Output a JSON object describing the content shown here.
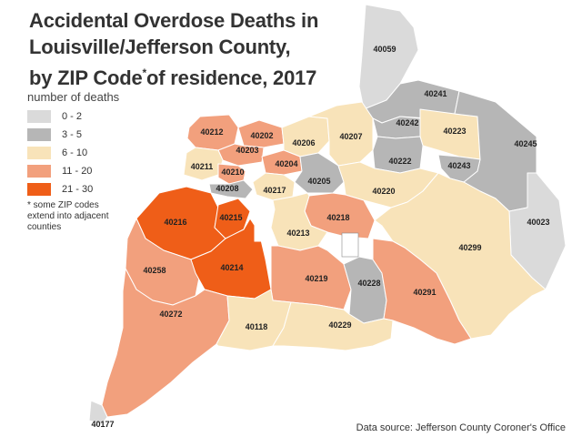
{
  "title": {
    "line1": "Accidental Overdose Deaths in",
    "line2": "Louisville/Jefferson County,",
    "line3a": "by ZIP Code",
    "asterisk": "*",
    "line3b": "of residence, 2017"
  },
  "legend": {
    "title": "number of deaths",
    "items": [
      {
        "label": "0 - 2",
        "color": "#dadada"
      },
      {
        "label": "3 - 5",
        "color": "#b6b6b6"
      },
      {
        "label": "6 - 10",
        "color": "#f8e3b9"
      },
      {
        "label": "11 - 20",
        "color": "#f2a07d"
      },
      {
        "label": "21 - 30",
        "color": "#ef5e18"
      }
    ]
  },
  "footnote": "* some ZIP codes extend into adjacent counties",
  "source": "Data source: Jefferson County Coroner's Office",
  "zip_codes": [
    {
      "zip": "40059",
      "deaths_range": "0 - 2"
    },
    {
      "zip": "40241",
      "deaths_range": "3 - 5"
    },
    {
      "zip": "40242",
      "deaths_range": "3 - 5"
    },
    {
      "zip": "40223",
      "deaths_range": "6 - 10"
    },
    {
      "zip": "40222",
      "deaths_range": "3 - 5"
    },
    {
      "zip": "40245",
      "deaths_range": "3 - 5"
    },
    {
      "zip": "40243",
      "deaths_range": "3 - 5"
    },
    {
      "zip": "40023",
      "deaths_range": "0 - 2"
    },
    {
      "zip": "40212",
      "deaths_range": "11 - 20"
    },
    {
      "zip": "40202",
      "deaths_range": "11 - 20"
    },
    {
      "zip": "40203",
      "deaths_range": "11 - 20"
    },
    {
      "zip": "40206",
      "deaths_range": "6 - 10"
    },
    {
      "zip": "40207",
      "deaths_range": "6 - 10"
    },
    {
      "zip": "40211",
      "deaths_range": "6 - 10"
    },
    {
      "zip": "40210",
      "deaths_range": "11 - 20"
    },
    {
      "zip": "40204",
      "deaths_range": "11 - 20"
    },
    {
      "zip": "40205",
      "deaths_range": "3 - 5"
    },
    {
      "zip": "40208",
      "deaths_range": "3 - 5"
    },
    {
      "zip": "40217",
      "deaths_range": "6 - 10"
    },
    {
      "zip": "40220",
      "deaths_range": "6 - 10"
    },
    {
      "zip": "40216",
      "deaths_range": "21 - 30"
    },
    {
      "zip": "40215",
      "deaths_range": "21 - 30"
    },
    {
      "zip": "40218",
      "deaths_range": "11 - 20"
    },
    {
      "zip": "40213",
      "deaths_range": "6 - 10"
    },
    {
      "zip": "40299",
      "deaths_range": "6 - 10"
    },
    {
      "zip": "40258",
      "deaths_range": "11 - 20"
    },
    {
      "zip": "40214",
      "deaths_range": "21 - 30"
    },
    {
      "zip": "40219",
      "deaths_range": "11 - 20"
    },
    {
      "zip": "40228",
      "deaths_range": "3 - 5"
    },
    {
      "zip": "40291",
      "deaths_range": "11 - 20"
    },
    {
      "zip": "40272",
      "deaths_range": "11 - 20"
    },
    {
      "zip": "40118",
      "deaths_range": "6 - 10"
    },
    {
      "zip": "40229",
      "deaths_range": "6 - 10"
    },
    {
      "zip": "40177",
      "deaths_range": "0 - 2"
    }
  ]
}
